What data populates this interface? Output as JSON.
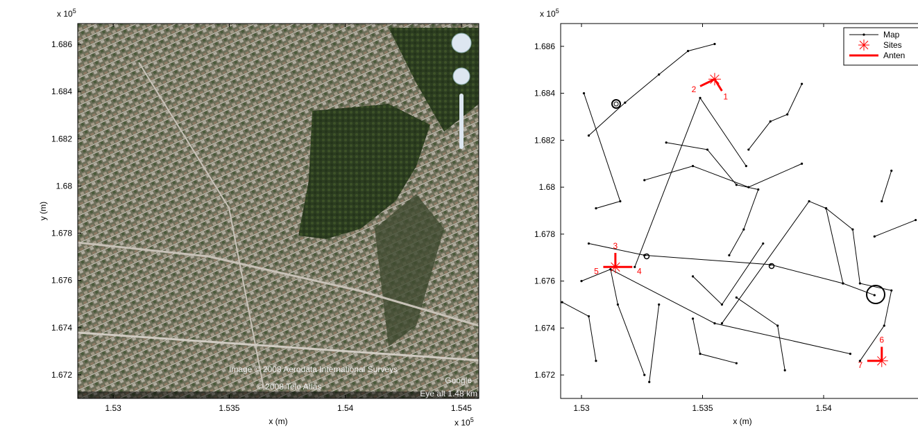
{
  "chart_data": [
    {
      "type": "image",
      "x_exponent": {
        "base": "x 10",
        "power": "5"
      },
      "y_exponent": {
        "base": "x 10",
        "power": "5"
      },
      "xlabel": "x (m)",
      "ylabel": "y (m)",
      "xlim": [
        1.52847,
        1.54575
      ],
      "ylim": [
        1.671,
        1.68688
      ],
      "xticks": [
        1.53,
        1.535,
        1.54,
        1.545
      ],
      "yticks": [
        1.672,
        1.674,
        1.676,
        1.678,
        1.68,
        1.682,
        1.684,
        1.686
      ],
      "credits": [
        "Image © 2008 Aerodata International Surveys",
        "© 2008 Tele Atlas",
        "Google",
        "Eye alt 1.48 km"
      ]
    },
    {
      "type": "map",
      "y_exponent": {
        "base": "x 10",
        "power": "5"
      },
      "xlabel": "x (m)",
      "xlim": [
        1.52914,
        1.5445
      ],
      "ylim": [
        1.671,
        1.68697
      ],
      "xticks": [
        1.53,
        1.535,
        1.54
      ],
      "yticks": [
        1.672,
        1.674,
        1.676,
        1.678,
        1.68,
        1.682,
        1.684,
        1.686
      ],
      "legend": "upper right",
      "series": [
        {
          "name": "Map",
          "color": "#000000",
          "lines": [
            {
              "x": [
                1.53,
                1.5312,
                1.5355,
                1.5411
              ],
              "y": [
                1.676,
                1.6765,
                1.6742,
                1.6729
              ]
            },
            {
              "x": [
                1.5326,
                1.5378,
                1.5408,
                1.5421
              ],
              "y": [
                1.6771,
                1.6767,
                1.6759,
                1.6754
              ]
            },
            {
              "x": [
                1.5303,
                1.5326
              ],
              "y": [
                1.6776,
                1.6771
              ]
            },
            {
              "x": [
                1.5322,
                1.5349,
                1.5368
              ],
              "y": [
                1.6766,
                1.6838,
                1.6809
              ]
            },
            {
              "x": [
                1.5358,
                1.5394,
                1.5401,
                1.5408
              ],
              "y": [
                1.6742,
                1.6794,
                1.6791,
                1.6759
              ]
            },
            {
              "x": [
                1.5301,
                1.5316,
                1.5306
              ],
              "y": [
                1.684,
                1.6794,
                1.6791
              ]
            },
            {
              "x": [
                1.5303,
                1.5318,
                1.5332,
                1.5344,
                1.5355
              ],
              "y": [
                1.6822,
                1.6836,
                1.6848,
                1.6858,
                1.6861
              ]
            },
            {
              "x": [
                1.5369,
                1.5378,
                1.5385,
                1.5391
              ],
              "y": [
                1.6816,
                1.6828,
                1.6831,
                1.6844
              ]
            },
            {
              "x": [
                1.5335,
                1.5352,
                1.5364,
                1.5373,
                1.5367,
                1.5361
              ],
              "y": [
                1.6819,
                1.6816,
                1.6801,
                1.6799,
                1.6782,
                1.6771
              ]
            },
            {
              "x": [
                1.5401,
                1.5412,
                1.5415,
                1.5428,
                1.5425,
                1.5415
              ],
              "y": [
                1.6791,
                1.6782,
                1.6759,
                1.6756,
                1.6741,
                1.6726
              ]
            },
            {
              "x": [
                1.5292,
                1.5303,
                1.5306
              ],
              "y": [
                1.6751,
                1.6745,
                1.6726
              ]
            },
            {
              "x": [
                1.5312,
                1.5315,
                1.5326
              ],
              "y": [
                1.6765,
                1.675,
                1.672
              ]
            },
            {
              "x": [
                1.5332,
                1.5328
              ],
              "y": [
                1.675,
                1.6717
              ]
            },
            {
              "x": [
                1.5364,
                1.5381,
                1.5384
              ],
              "y": [
                1.6753,
                1.6741,
                1.6722
              ]
            },
            {
              "x": [
                1.5346,
                1.5349,
                1.5364
              ],
              "y": [
                1.6744,
                1.6729,
                1.6725
              ]
            },
            {
              "x": [
                1.5421,
                1.5438
              ],
              "y": [
                1.6779,
                1.6786
              ]
            },
            {
              "x": [
                1.5428,
                1.5424
              ],
              "y": [
                1.6807,
                1.6794
              ]
            },
            {
              "x": [
                1.5391,
                1.5369,
                1.5346,
                1.5326
              ],
              "y": [
                1.681,
                1.68,
                1.6809,
                1.6803
              ]
            },
            {
              "x": [
                1.5346,
                1.5358,
                1.5375
              ],
              "y": [
                1.6762,
                1.675,
                1.6776
              ]
            }
          ]
        },
        {
          "name": "Sites",
          "color": "#ff0000",
          "x": [
            1.5355,
            1.5314,
            1.5424
          ],
          "y": [
            1.6846,
            1.6766,
            1.6726
          ]
        },
        {
          "name": "Anten",
          "color": "#ff0000",
          "labels": [
            "1",
            "2",
            "3",
            "4",
            "5",
            "6",
            "7"
          ],
          "x": [
            [
              1.5355,
              1.5358
            ],
            [
              1.5355,
              1.5349
            ],
            [
              1.5314,
              1.5314
            ],
            [
              1.5314,
              1.5321
            ],
            [
              1.5314,
              1.5309
            ],
            [
              1.5424,
              1.5424
            ],
            [
              1.5424,
              1.5418
            ]
          ],
          "y": [
            [
              1.6846,
              1.6841
            ],
            [
              1.6846,
              1.6843
            ],
            [
              1.6766,
              1.6772
            ],
            [
              1.6766,
              1.6766
            ],
            [
              1.6766,
              1.6766
            ],
            [
              1.6726,
              1.6732
            ],
            [
              1.6726,
              1.6726
            ]
          ]
        }
      ]
    }
  ]
}
